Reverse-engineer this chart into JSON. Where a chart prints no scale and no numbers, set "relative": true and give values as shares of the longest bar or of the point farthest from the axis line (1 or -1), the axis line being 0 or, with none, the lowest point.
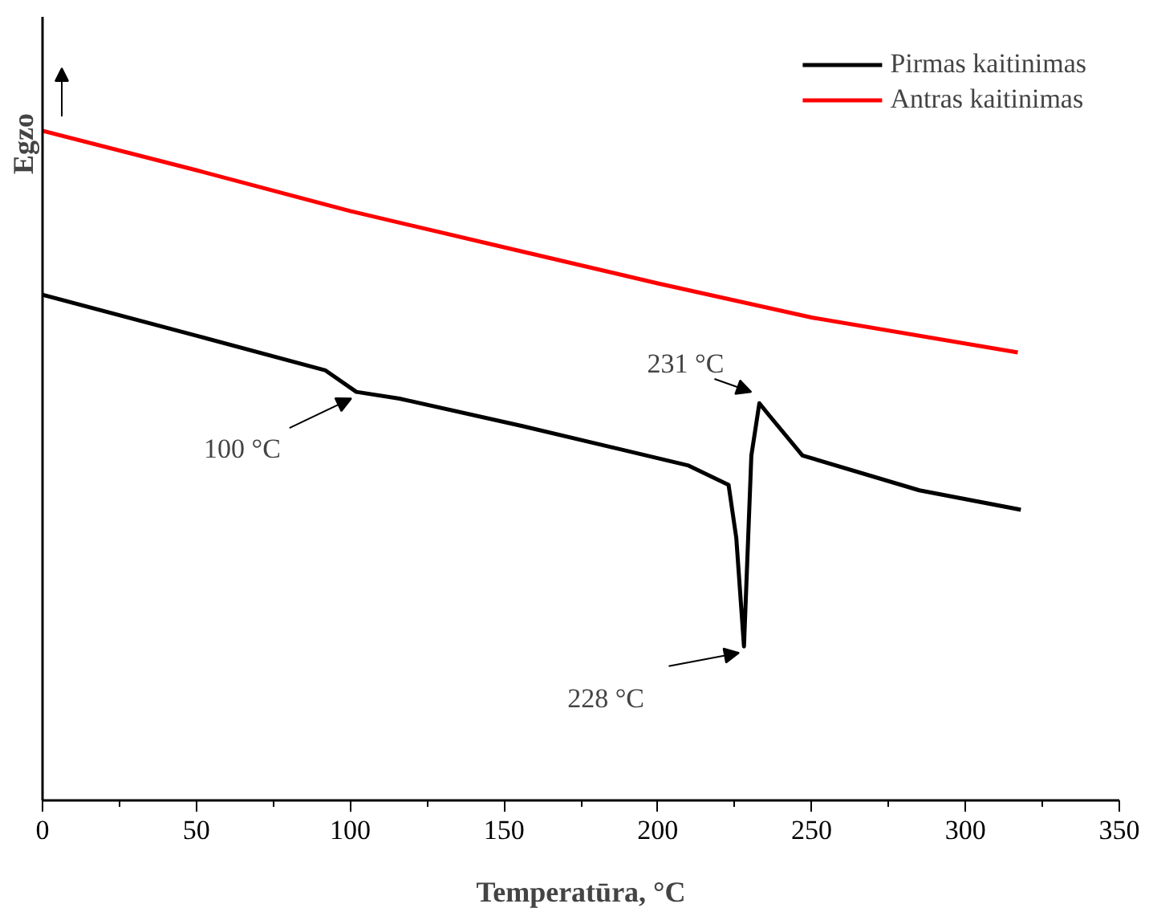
{
  "chart_data": {
    "type": "line",
    "relative": true,
    "xlabel": "Temperatūra, °C",
    "ylabel": "Egzo",
    "xlim": [
      0,
      350
    ],
    "xticks": [
      0,
      50,
      100,
      150,
      200,
      250,
      300,
      350
    ],
    "legend": "top right",
    "grid": false,
    "tick_labels": "x",
    "series": [
      {
        "name": "Pirmas kaitinimas",
        "color": "#000000",
        "x": [
          0,
          50,
          92,
          102,
          116,
          156,
          210,
          223,
          225.5,
          228,
          230.4,
          233,
          236,
          247,
          285,
          318
        ],
        "values": [
          0.755,
          0.694,
          0.642,
          0.61,
          0.6,
          0.559,
          0.5,
          0.471,
          0.392,
          0.23,
          0.515,
          0.593,
          0.576,
          0.515,
          0.463,
          0.434
        ]
      },
      {
        "name": "Antras kaitinimas",
        "color": "#ff0000",
        "x": [
          0,
          50,
          100,
          150,
          200,
          250,
          317
        ],
        "values": [
          1.0,
          0.941,
          0.88,
          0.826,
          0.772,
          0.721,
          0.669
        ]
      }
    ],
    "annotations": [
      {
        "text": "100 °C",
        "x": 102,
        "y": 0.61
      },
      {
        "text": "231 °C",
        "x": 232,
        "y": 0.6
      },
      {
        "text": "228 °C",
        "x": 228,
        "y": 0.23
      }
    ]
  }
}
